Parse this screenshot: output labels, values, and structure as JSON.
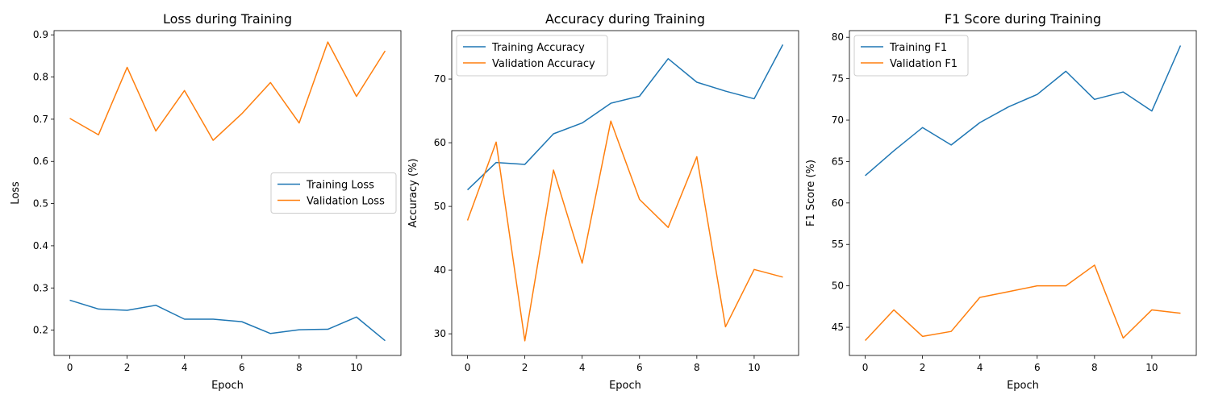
{
  "colors": {
    "series1": "#1f77b4",
    "series2": "#ff7f0e"
  },
  "chart_data": [
    {
      "type": "line",
      "title": "Loss during Training",
      "xlabel": "Epoch",
      "ylabel": "Loss",
      "x": [
        0,
        1,
        2,
        3,
        4,
        5,
        6,
        7,
        8,
        9,
        10,
        11
      ],
      "xlim": [
        -0.55,
        11.55
      ],
      "ylim": [
        0.14,
        0.91
      ],
      "xticks": [
        0,
        2,
        4,
        6,
        8,
        10
      ],
      "yticks": [
        0.2,
        0.3,
        0.4,
        0.5,
        0.6,
        0.7,
        0.8,
        0.9
      ],
      "ytick_labels": [
        "0.2",
        "0.3",
        "0.4",
        "0.5",
        "0.6",
        "0.7",
        "0.8",
        "0.9"
      ],
      "legend_position": "center-right",
      "grid": false,
      "series": [
        {
          "name": "Training Loss",
          "values": [
            0.271,
            0.25,
            0.247,
            0.259,
            0.226,
            0.226,
            0.22,
            0.192,
            0.201,
            0.202,
            0.231,
            0.175
          ]
        },
        {
          "name": "Validation Loss",
          "values": [
            0.702,
            0.663,
            0.823,
            0.672,
            0.768,
            0.65,
            0.713,
            0.787,
            0.691,
            0.883,
            0.754,
            0.862
          ]
        }
      ]
    },
    {
      "type": "line",
      "title": "Accuracy during Training",
      "xlabel": "Epoch",
      "ylabel": "Accuracy (%)",
      "x": [
        0,
        1,
        2,
        3,
        4,
        5,
        6,
        7,
        8,
        9,
        10,
        11
      ],
      "xlim": [
        -0.55,
        11.55
      ],
      "ylim": [
        26.6,
        77.6
      ],
      "xticks": [
        0,
        2,
        4,
        6,
        8,
        10
      ],
      "yticks": [
        30,
        40,
        50,
        60,
        70
      ],
      "ytick_labels": [
        "30",
        "40",
        "50",
        "60",
        "70"
      ],
      "legend_position": "top-left",
      "grid": false,
      "series": [
        {
          "name": "Training Accuracy",
          "values": [
            52.6,
            56.9,
            56.6,
            61.4,
            63.1,
            66.2,
            67.3,
            73.2,
            69.5,
            68.1,
            66.9,
            75.4
          ]
        },
        {
          "name": "Validation Accuracy",
          "values": [
            47.8,
            60.1,
            28.9,
            55.7,
            41.1,
            63.4,
            51.1,
            46.7,
            57.8,
            31.1,
            40.1,
            38.9
          ]
        }
      ]
    },
    {
      "type": "line",
      "title": "F1 Score during Training",
      "xlabel": "Epoch",
      "ylabel": "F1 Score (%)",
      "x": [
        0,
        1,
        2,
        3,
        4,
        5,
        6,
        7,
        8,
        9,
        10,
        11
      ],
      "xlim": [
        -0.55,
        11.55
      ],
      "ylim": [
        41.6,
        80.8
      ],
      "xticks": [
        0,
        2,
        4,
        6,
        8,
        10
      ],
      "yticks": [
        45,
        50,
        55,
        60,
        65,
        70,
        75,
        80
      ],
      "ytick_labels": [
        "45",
        "50",
        "55",
        "60",
        "65",
        "70",
        "75",
        "80"
      ],
      "legend_position": "top-left",
      "grid": false,
      "series": [
        {
          "name": "Training F1",
          "values": [
            63.3,
            66.3,
            69.1,
            67.0,
            69.7,
            71.6,
            73.1,
            75.9,
            72.5,
            73.4,
            71.1,
            79.0
          ]
        },
        {
          "name": "Validation F1",
          "values": [
            43.4,
            47.1,
            43.9,
            44.5,
            48.6,
            49.3,
            50.0,
            50.0,
            52.5,
            43.7,
            47.1,
            46.7
          ]
        }
      ]
    }
  ]
}
